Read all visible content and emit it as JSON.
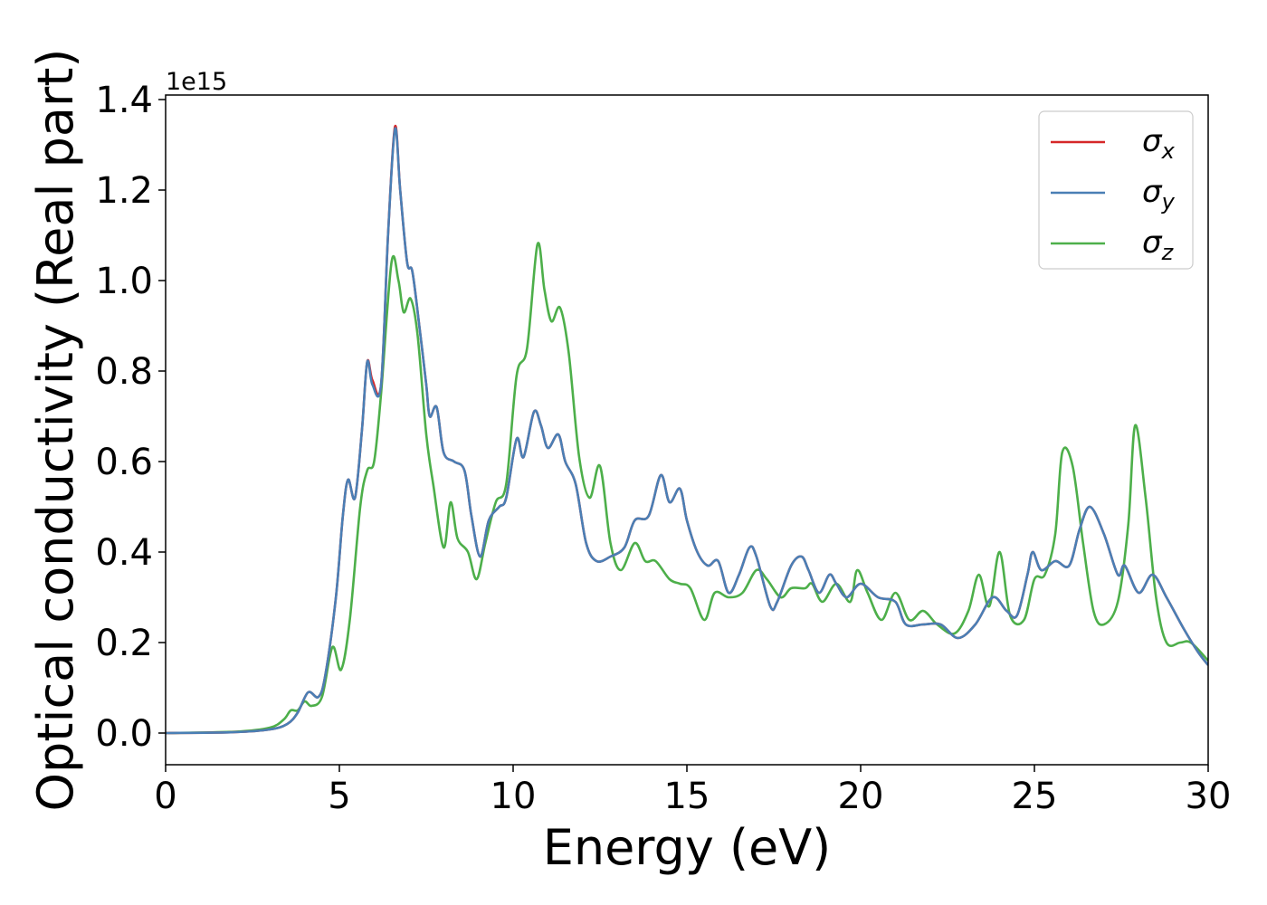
{
  "chart_data": {
    "type": "line",
    "title": "",
    "xlabel": "Energy (eV)",
    "ylabel": "Optical conductivity (Real part)",
    "y_offset_label": "1e15",
    "xlim": [
      0,
      30
    ],
    "ylim": [
      -0.07,
      1.41
    ],
    "x_ticks": [
      0,
      5,
      10,
      15,
      20,
      25,
      30
    ],
    "y_ticks": [
      0.0,
      0.2,
      0.4,
      0.6,
      0.8,
      1.0,
      1.2,
      1.4
    ],
    "x_tick_labels": [
      "0",
      "5",
      "10",
      "15",
      "20",
      "25",
      "30"
    ],
    "y_tick_labels": [
      "0.0",
      "0.2",
      "0.4",
      "0.6",
      "0.8",
      "1.0",
      "1.2",
      "1.4"
    ],
    "grid": false,
    "legend_position": "top-right",
    "series": [
      {
        "name": "σx",
        "name_symbol": "σ",
        "name_sub": "x",
        "color": "#d62728",
        "points": [
          [
            0,
            0
          ],
          [
            2,
            0.002
          ],
          [
            3,
            0.008
          ],
          [
            3.5,
            0.02
          ],
          [
            3.8,
            0.045
          ],
          [
            4.1,
            0.09
          ],
          [
            4.4,
            0.08
          ],
          [
            4.6,
            0.13
          ],
          [
            4.9,
            0.3
          ],
          [
            5.1,
            0.48
          ],
          [
            5.25,
            0.56
          ],
          [
            5.45,
            0.52
          ],
          [
            5.65,
            0.67
          ],
          [
            5.8,
            0.82
          ],
          [
            5.95,
            0.78
          ],
          [
            6.2,
            0.77
          ],
          [
            6.4,
            1.1
          ],
          [
            6.6,
            1.34
          ],
          [
            6.75,
            1.2
          ],
          [
            6.95,
            1.04
          ],
          [
            7.1,
            1.02
          ],
          [
            7.3,
            0.9
          ],
          [
            7.5,
            0.77
          ],
          [
            7.6,
            0.7
          ],
          [
            7.8,
            0.72
          ],
          [
            8.0,
            0.62
          ],
          [
            8.3,
            0.6
          ],
          [
            8.6,
            0.58
          ],
          [
            8.8,
            0.48
          ],
          [
            9.05,
            0.39
          ],
          [
            9.3,
            0.47
          ],
          [
            9.6,
            0.5
          ],
          [
            9.8,
            0.52
          ],
          [
            10.1,
            0.65
          ],
          [
            10.3,
            0.61
          ],
          [
            10.6,
            0.71
          ],
          [
            10.8,
            0.68
          ],
          [
            11.0,
            0.63
          ],
          [
            11.3,
            0.66
          ],
          [
            11.5,
            0.6
          ],
          [
            11.8,
            0.55
          ],
          [
            12.1,
            0.42
          ],
          [
            12.4,
            0.38
          ],
          [
            12.8,
            0.39
          ],
          [
            13.2,
            0.41
          ],
          [
            13.5,
            0.47
          ],
          [
            13.9,
            0.48
          ],
          [
            14.25,
            0.57
          ],
          [
            14.5,
            0.51
          ],
          [
            14.8,
            0.54
          ],
          [
            15.0,
            0.47
          ],
          [
            15.3,
            0.4
          ],
          [
            15.6,
            0.37
          ],
          [
            15.9,
            0.38
          ],
          [
            16.2,
            0.31
          ],
          [
            16.5,
            0.35
          ],
          [
            16.8,
            0.41
          ],
          [
            17.0,
            0.39
          ],
          [
            17.4,
            0.28
          ],
          [
            17.6,
            0.29
          ],
          [
            18.0,
            0.37
          ],
          [
            18.3,
            0.39
          ],
          [
            18.5,
            0.36
          ],
          [
            18.8,
            0.31
          ],
          [
            19.1,
            0.35
          ],
          [
            19.3,
            0.33
          ],
          [
            19.6,
            0.3
          ],
          [
            20.0,
            0.33
          ],
          [
            20.5,
            0.3
          ],
          [
            21.0,
            0.29
          ],
          [
            21.3,
            0.24
          ],
          [
            21.8,
            0.24
          ],
          [
            22.3,
            0.24
          ],
          [
            22.8,
            0.21
          ],
          [
            23.3,
            0.24
          ],
          [
            23.8,
            0.3
          ],
          [
            24.2,
            0.27
          ],
          [
            24.5,
            0.26
          ],
          [
            24.8,
            0.35
          ],
          [
            24.95,
            0.4
          ],
          [
            25.2,
            0.36
          ],
          [
            25.6,
            0.38
          ],
          [
            26.0,
            0.37
          ],
          [
            26.3,
            0.45
          ],
          [
            26.6,
            0.5
          ],
          [
            27.0,
            0.44
          ],
          [
            27.4,
            0.35
          ],
          [
            27.6,
            0.37
          ],
          [
            28.0,
            0.31
          ],
          [
            28.4,
            0.35
          ],
          [
            28.8,
            0.3
          ],
          [
            29.3,
            0.23
          ],
          [
            29.7,
            0.18
          ],
          [
            30.0,
            0.15
          ]
        ]
      },
      {
        "name": "σy",
        "name_symbol": "σ",
        "name_sub": "y",
        "color": "#4a7fb5",
        "points": [
          [
            0,
            0
          ],
          [
            2,
            0.002
          ],
          [
            3,
            0.008
          ],
          [
            3.5,
            0.02
          ],
          [
            3.8,
            0.045
          ],
          [
            4.1,
            0.09
          ],
          [
            4.4,
            0.08
          ],
          [
            4.6,
            0.13
          ],
          [
            4.9,
            0.3
          ],
          [
            5.1,
            0.48
          ],
          [
            5.25,
            0.56
          ],
          [
            5.45,
            0.52
          ],
          [
            5.65,
            0.67
          ],
          [
            5.8,
            0.82
          ],
          [
            5.95,
            0.77
          ],
          [
            6.2,
            0.77
          ],
          [
            6.4,
            1.1
          ],
          [
            6.6,
            1.335
          ],
          [
            6.75,
            1.2
          ],
          [
            6.95,
            1.04
          ],
          [
            7.1,
            1.02
          ],
          [
            7.3,
            0.9
          ],
          [
            7.5,
            0.77
          ],
          [
            7.6,
            0.7
          ],
          [
            7.8,
            0.72
          ],
          [
            8.0,
            0.62
          ],
          [
            8.3,
            0.6
          ],
          [
            8.6,
            0.58
          ],
          [
            8.8,
            0.48
          ],
          [
            9.05,
            0.39
          ],
          [
            9.3,
            0.47
          ],
          [
            9.6,
            0.5
          ],
          [
            9.8,
            0.52
          ],
          [
            10.1,
            0.65
          ],
          [
            10.3,
            0.61
          ],
          [
            10.6,
            0.71
          ],
          [
            10.8,
            0.68
          ],
          [
            11.0,
            0.63
          ],
          [
            11.3,
            0.66
          ],
          [
            11.5,
            0.6
          ],
          [
            11.8,
            0.55
          ],
          [
            12.1,
            0.42
          ],
          [
            12.4,
            0.38
          ],
          [
            12.8,
            0.39
          ],
          [
            13.2,
            0.41
          ],
          [
            13.5,
            0.47
          ],
          [
            13.9,
            0.48
          ],
          [
            14.25,
            0.57
          ],
          [
            14.5,
            0.51
          ],
          [
            14.8,
            0.54
          ],
          [
            15.0,
            0.47
          ],
          [
            15.3,
            0.4
          ],
          [
            15.6,
            0.37
          ],
          [
            15.9,
            0.38
          ],
          [
            16.2,
            0.31
          ],
          [
            16.5,
            0.35
          ],
          [
            16.8,
            0.41
          ],
          [
            17.0,
            0.39
          ],
          [
            17.4,
            0.28
          ],
          [
            17.6,
            0.29
          ],
          [
            18.0,
            0.37
          ],
          [
            18.3,
            0.39
          ],
          [
            18.5,
            0.36
          ],
          [
            18.8,
            0.31
          ],
          [
            19.1,
            0.35
          ],
          [
            19.3,
            0.33
          ],
          [
            19.6,
            0.3
          ],
          [
            20.0,
            0.33
          ],
          [
            20.5,
            0.3
          ],
          [
            21.0,
            0.29
          ],
          [
            21.3,
            0.24
          ],
          [
            21.8,
            0.24
          ],
          [
            22.3,
            0.24
          ],
          [
            22.8,
            0.21
          ],
          [
            23.3,
            0.24
          ],
          [
            23.8,
            0.3
          ],
          [
            24.2,
            0.27
          ],
          [
            24.5,
            0.26
          ],
          [
            24.8,
            0.35
          ],
          [
            24.95,
            0.4
          ],
          [
            25.2,
            0.36
          ],
          [
            25.6,
            0.38
          ],
          [
            26.0,
            0.37
          ],
          [
            26.3,
            0.45
          ],
          [
            26.6,
            0.5
          ],
          [
            27.0,
            0.44
          ],
          [
            27.4,
            0.35
          ],
          [
            27.6,
            0.37
          ],
          [
            28.0,
            0.31
          ],
          [
            28.4,
            0.35
          ],
          [
            28.8,
            0.3
          ],
          [
            29.3,
            0.23
          ],
          [
            29.7,
            0.18
          ],
          [
            30.0,
            0.15
          ]
        ]
      },
      {
        "name": "σz",
        "name_symbol": "σ",
        "name_sub": "z",
        "color": "#4daf4a",
        "points": [
          [
            0,
            0
          ],
          [
            2,
            0.003
          ],
          [
            3,
            0.012
          ],
          [
            3.4,
            0.03
          ],
          [
            3.6,
            0.05
          ],
          [
            3.8,
            0.05
          ],
          [
            4.0,
            0.07
          ],
          [
            4.2,
            0.06
          ],
          [
            4.5,
            0.08
          ],
          [
            4.8,
            0.19
          ],
          [
            5.05,
            0.14
          ],
          [
            5.3,
            0.25
          ],
          [
            5.6,
            0.5
          ],
          [
            5.8,
            0.58
          ],
          [
            6.0,
            0.6
          ],
          [
            6.2,
            0.75
          ],
          [
            6.5,
            1.04
          ],
          [
            6.7,
            1.0
          ],
          [
            6.85,
            0.93
          ],
          [
            7.05,
            0.96
          ],
          [
            7.25,
            0.88
          ],
          [
            7.5,
            0.66
          ],
          [
            7.7,
            0.55
          ],
          [
            8.0,
            0.41
          ],
          [
            8.2,
            0.51
          ],
          [
            8.4,
            0.43
          ],
          [
            8.7,
            0.4
          ],
          [
            8.95,
            0.34
          ],
          [
            9.2,
            0.42
          ],
          [
            9.5,
            0.51
          ],
          [
            9.8,
            0.55
          ],
          [
            10.1,
            0.79
          ],
          [
            10.4,
            0.85
          ],
          [
            10.7,
            1.08
          ],
          [
            10.9,
            0.98
          ],
          [
            11.1,
            0.91
          ],
          [
            11.35,
            0.94
          ],
          [
            11.6,
            0.84
          ],
          [
            11.9,
            0.61
          ],
          [
            12.2,
            0.52
          ],
          [
            12.5,
            0.59
          ],
          [
            12.8,
            0.42
          ],
          [
            13.1,
            0.36
          ],
          [
            13.5,
            0.42
          ],
          [
            13.8,
            0.38
          ],
          [
            14.1,
            0.38
          ],
          [
            14.5,
            0.34
          ],
          [
            14.8,
            0.33
          ],
          [
            15.1,
            0.32
          ],
          [
            15.5,
            0.25
          ],
          [
            15.8,
            0.31
          ],
          [
            16.2,
            0.3
          ],
          [
            16.6,
            0.31
          ],
          [
            17.0,
            0.36
          ],
          [
            17.3,
            0.34
          ],
          [
            17.7,
            0.3
          ],
          [
            18.0,
            0.32
          ],
          [
            18.4,
            0.32
          ],
          [
            18.6,
            0.33
          ],
          [
            18.9,
            0.29
          ],
          [
            19.3,
            0.33
          ],
          [
            19.7,
            0.29
          ],
          [
            19.9,
            0.36
          ],
          [
            20.2,
            0.31
          ],
          [
            20.6,
            0.25
          ],
          [
            21.0,
            0.31
          ],
          [
            21.4,
            0.25
          ],
          [
            21.8,
            0.27
          ],
          [
            22.2,
            0.24
          ],
          [
            22.7,
            0.22
          ],
          [
            23.1,
            0.27
          ],
          [
            23.4,
            0.35
          ],
          [
            23.7,
            0.28
          ],
          [
            24.0,
            0.4
          ],
          [
            24.3,
            0.26
          ],
          [
            24.7,
            0.25
          ],
          [
            25.0,
            0.34
          ],
          [
            25.3,
            0.35
          ],
          [
            25.6,
            0.44
          ],
          [
            25.8,
            0.62
          ],
          [
            26.1,
            0.59
          ],
          [
            26.4,
            0.42
          ],
          [
            26.7,
            0.27
          ],
          [
            27.0,
            0.24
          ],
          [
            27.4,
            0.29
          ],
          [
            27.7,
            0.46
          ],
          [
            27.9,
            0.68
          ],
          [
            28.2,
            0.52
          ],
          [
            28.5,
            0.3
          ],
          [
            28.8,
            0.2
          ],
          [
            29.2,
            0.2
          ],
          [
            29.5,
            0.2
          ],
          [
            30.0,
            0.16
          ]
        ]
      }
    ]
  }
}
